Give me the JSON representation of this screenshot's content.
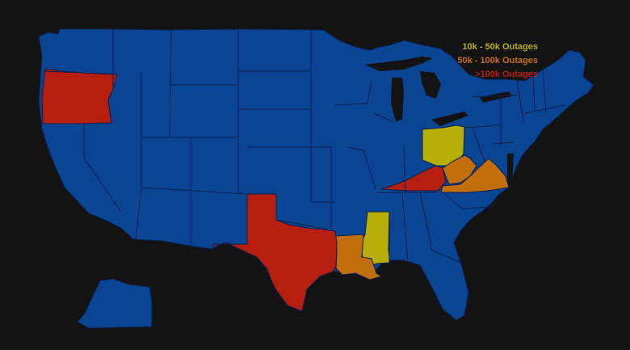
{
  "map": {
    "colors": {
      "background": "#131313",
      "default_state": "#0a4594",
      "border": "#0b1f4d",
      "tier_10k_50k": "#b7ae08",
      "tier_50k_100k": "#c26e0d",
      "tier_gt_100k": "#b61e10"
    },
    "legend": [
      {
        "label": "10k - 50k Outages",
        "color": "#b7ae08"
      },
      {
        "label": "50k - 100k Outages",
        "color": "#c26e0d"
      },
      {
        "label": ">100k Outages",
        "color": "#b61e10"
      }
    ],
    "states_by_tier": {
      "tier_10k_50k": [
        "Ohio",
        "Mississippi"
      ],
      "tier_50k_100k": [
        "Louisiana",
        "West Virginia",
        "Virginia"
      ],
      "tier_gt_100k": [
        "Oregon",
        "Texas",
        "Kentucky"
      ]
    }
  }
}
